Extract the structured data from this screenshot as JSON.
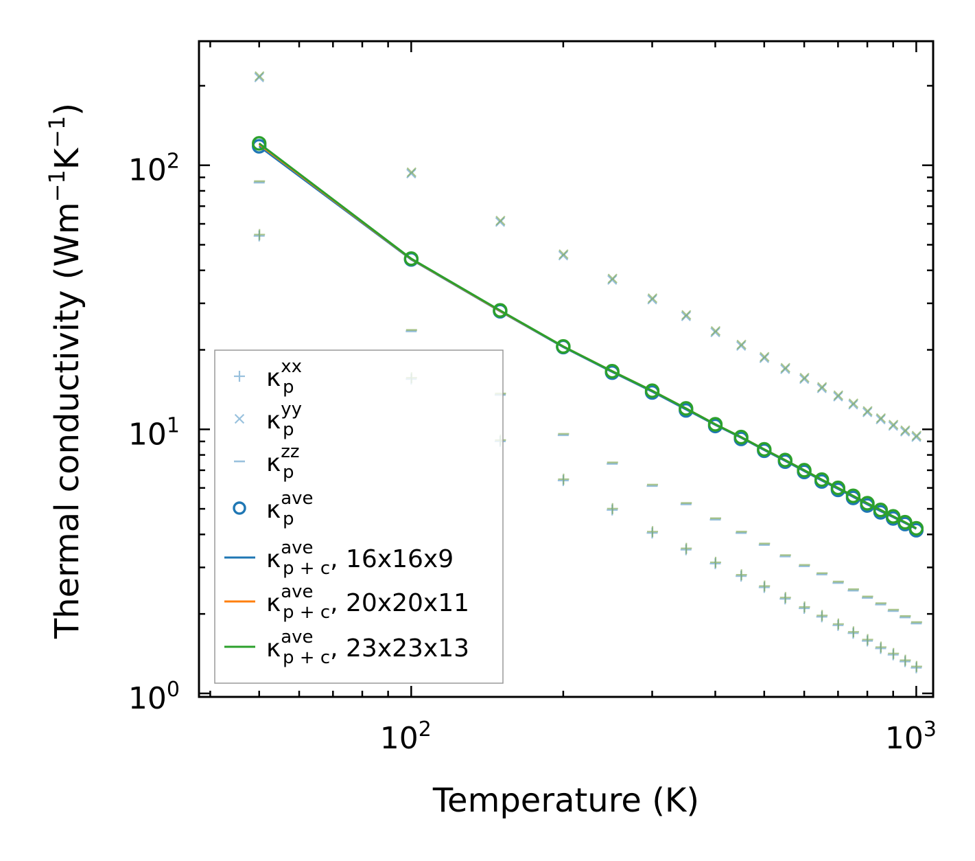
{
  "chart_data": {
    "type": "scatter",
    "xscale": "log",
    "yscale": "log",
    "xlabel": "Temperature (K)",
    "ylabel": "Thermal conductivity (Wm",
    "ylabel_unit_parts": [
      "Thermal conductivity (Wm",
      "−1",
      "K",
      "−1",
      ")"
    ],
    "xlim": [
      38,
      1080
    ],
    "ylim": [
      0.97,
      295
    ],
    "x_ticks": [
      {
        "base": "10",
        "exp": "2",
        "value": 100
      },
      {
        "base": "10",
        "exp": "3",
        "value": 1000
      }
    ],
    "y_ticks": [
      {
        "base": "10",
        "exp": "0",
        "value": 1
      },
      {
        "base": "10",
        "exp": "1",
        "value": 10
      },
      {
        "base": "10",
        "exp": "2",
        "value": 100
      }
    ],
    "temperatures": [
      50,
      100,
      150,
      200,
      250,
      300,
      350,
      400,
      450,
      500,
      550,
      600,
      650,
      700,
      750,
      800,
      850,
      900,
      950,
      1000
    ],
    "series": [
      {
        "name": "kappa_p_xx",
        "label_main": "κ",
        "label_sup": "xx",
        "label_sub": "p",
        "marker": "plus",
        "color": "#1f77b4",
        "values": [
          54,
          15.5,
          9.0,
          6.4,
          4.95,
          4.05,
          3.5,
          3.1,
          2.78,
          2.52,
          2.28,
          2.1,
          1.95,
          1.81,
          1.69,
          1.58,
          1.48,
          1.4,
          1.32,
          1.25
        ]
      },
      {
        "name": "kappa_p_yy",
        "label_main": "κ",
        "label_sup": "yy",
        "label_sub": "p",
        "marker": "cross",
        "color": "#1f77b4",
        "values": [
          215,
          93,
          61,
          45.5,
          36.8,
          31.0,
          26.8,
          23.3,
          20.7,
          18.6,
          16.9,
          15.5,
          14.3,
          13.3,
          12.4,
          11.6,
          10.9,
          10.3,
          9.8,
          9.35
        ]
      },
      {
        "name": "kappa_p_zz",
        "label_main": "κ",
        "label_sup": "zz",
        "label_sub": "p",
        "marker": "dash",
        "color": "#1f77b4",
        "values": [
          86,
          23.5,
          13.5,
          9.5,
          7.4,
          6.1,
          5.2,
          4.55,
          4.05,
          3.65,
          3.3,
          3.03,
          2.82,
          2.62,
          2.45,
          2.3,
          2.17,
          2.05,
          1.94,
          1.84
        ]
      },
      {
        "name": "kappa_p_ave",
        "label_main": "κ",
        "label_sup": "ave",
        "label_sub": "p",
        "marker": "circle",
        "color": "#1f77b4",
        "values": [
          118,
          44,
          28.0,
          20.5,
          16.4,
          13.8,
          11.8,
          10.3,
          9.2,
          8.3,
          7.55,
          6.9,
          6.35,
          5.9,
          5.5,
          5.15,
          4.85,
          4.6,
          4.38,
          4.15
        ]
      },
      {
        "name": "kappa_pc_ave_16x16x9",
        "label_main": "κ",
        "label_sup": "ave",
        "label_sub": "p + c",
        "label_tail": ", 16x16x9",
        "marker": "line",
        "color": "#1f77b4",
        "values": [
          118,
          44,
          28.0,
          20.5,
          16.5,
          13.9,
          11.9,
          10.4,
          9.3,
          8.35,
          7.6,
          6.95,
          6.4,
          5.95,
          5.55,
          5.2,
          4.9,
          4.65,
          4.42,
          4.2
        ]
      },
      {
        "name": "kappa_pc_ave_20x20x11",
        "label_main": "κ",
        "label_sup": "ave",
        "label_sub": "p + c",
        "label_tail": ", 20x20x11",
        "marker": "line",
        "color": "#ff7f0e",
        "values": [
          120,
          44.2,
          28.1,
          20.6,
          16.6,
          14.0,
          12.0,
          10.45,
          9.35,
          8.4,
          7.65,
          7.0,
          6.45,
          6.0,
          5.6,
          5.25,
          4.95,
          4.68,
          4.45,
          4.22
        ]
      },
      {
        "name": "kappa_pc_ave_23x23x13",
        "label_main": "κ",
        "label_sup": "ave",
        "label_sub": "p + c",
        "label_tail": ", 23x23x13",
        "marker": "line",
        "color": "#2ca02c",
        "values": [
          121,
          44.3,
          28.2,
          20.6,
          16.6,
          14.0,
          12.0,
          10.45,
          9.35,
          8.4,
          7.65,
          7.0,
          6.45,
          6.0,
          5.6,
          5.25,
          4.95,
          4.68,
          4.45,
          4.22
        ]
      }
    ],
    "overlay": {
      "description": "duplicate markers drawn in green for the 23x23x13 mesh",
      "color_markers": "#6b9a3a",
      "circle_color": "#2ca02c"
    },
    "legend_position": "lower-left"
  }
}
